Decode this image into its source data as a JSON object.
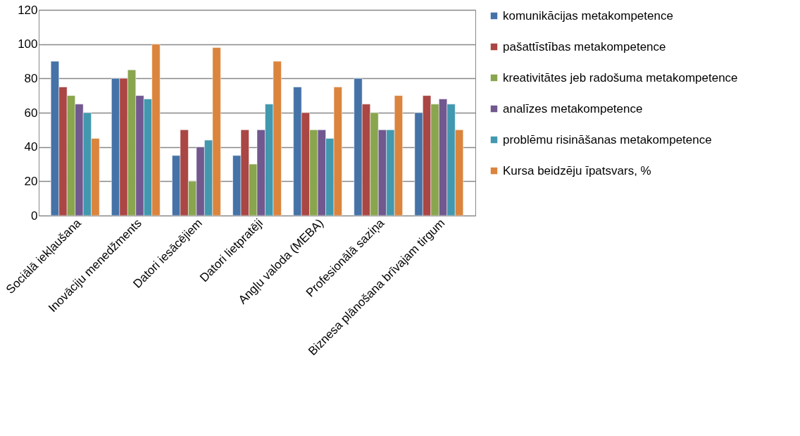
{
  "chart_data": {
    "type": "bar",
    "categories": [
      "Sociālā iekļaušana",
      "Inovāciju menedžments",
      "Datori iesācējiem",
      "Datori lietpratēji",
      "Angļu valoda (MEBA)",
      "Profesionālā saziņa",
      "Biznesa plānošana brīvajam tirgum"
    ],
    "series": [
      {
        "name": "komunikācijas metakompetence",
        "color": "#4572a7",
        "values": [
          90,
          80,
          35,
          35,
          75,
          80,
          60
        ]
      },
      {
        "name": "pašattīstības metakompetence",
        "color": "#aa4643",
        "values": [
          75,
          80,
          50,
          50,
          60,
          65,
          70
        ]
      },
      {
        "name": "kreativitātes jeb radošuma metakompetence",
        "color": "#89a54e",
        "values": [
          70,
          85,
          20,
          30,
          50,
          60,
          65
        ]
      },
      {
        "name": "analīzes metakompetence",
        "color": "#71588f",
        "values": [
          65,
          70,
          40,
          50,
          50,
          50,
          68
        ]
      },
      {
        "name": "problēmu risināšanas metakompetence",
        "color": "#4198af",
        "values": [
          60,
          68,
          44,
          65,
          45,
          50,
          65
        ]
      },
      {
        "name": "Kursa beidzēju īpatsvars, %",
        "color": "#db843d",
        "values": [
          45,
          100,
          98,
          90,
          75,
          70,
          50
        ]
      }
    ],
    "ylim": [
      0,
      120
    ],
    "yticks": [
      0,
      20,
      40,
      60,
      80,
      100,
      120
    ],
    "grid": "y",
    "legend": "right"
  }
}
